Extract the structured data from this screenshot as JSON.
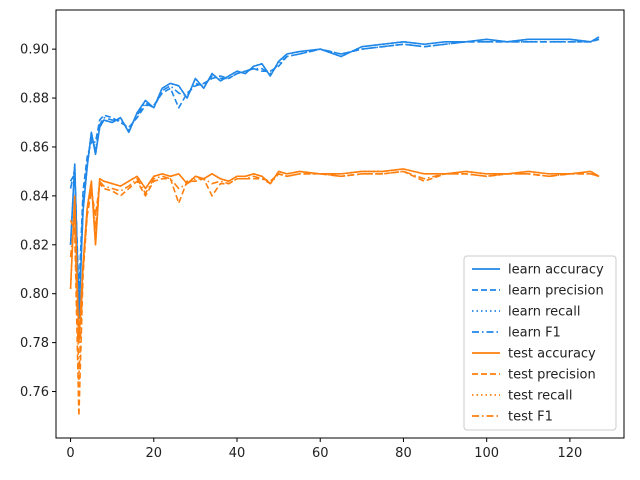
{
  "chart_data": {
    "type": "line",
    "xlim": [
      -3.5,
      133
    ],
    "ylim": [
      0.741,
      0.916
    ],
    "xticks": [
      0,
      20,
      40,
      60,
      80,
      100,
      120
    ],
    "yticks": [
      0.76,
      0.78,
      0.8,
      0.82,
      0.84,
      0.86,
      0.88,
      0.9
    ],
    "ytick_labels": [
      "0.76",
      "0.78",
      "0.80",
      "0.82",
      "0.84",
      "0.86",
      "0.88",
      "0.90"
    ],
    "legend_position": "lower-right",
    "colors": {
      "learn": "#1f87e8",
      "test": "#ff7f0e"
    },
    "x_checkpoints": [
      0,
      1,
      2,
      3,
      4,
      5,
      6,
      7,
      8,
      10,
      12,
      14,
      16,
      18,
      20,
      22,
      24,
      26,
      28,
      30,
      32,
      34,
      36,
      38,
      40,
      42,
      44,
      46,
      48,
      50,
      52,
      55,
      60,
      65,
      70,
      75,
      80,
      85,
      90,
      95,
      100,
      105,
      110,
      115,
      120,
      125,
      127
    ],
    "series": [
      {
        "name": "learn accuracy",
        "group": "learn",
        "dash": "solid",
        "values": [
          0.82,
          0.853,
          0.79,
          0.834,
          0.852,
          0.866,
          0.857,
          0.868,
          0.871,
          0.87,
          0.872,
          0.866,
          0.874,
          0.879,
          0.876,
          0.884,
          0.886,
          0.885,
          0.88,
          0.888,
          0.884,
          0.89,
          0.887,
          0.889,
          0.891,
          0.89,
          0.893,
          0.894,
          0.889,
          0.895,
          0.898,
          0.899,
          0.9,
          0.897,
          0.901,
          0.902,
          0.903,
          0.902,
          0.903,
          0.903,
          0.904,
          0.903,
          0.904,
          0.904,
          0.904,
          0.903,
          0.905
        ]
      },
      {
        "name": "learn precision",
        "group": "learn",
        "dash": "dashed",
        "values": [
          0.846,
          0.849,
          0.8,
          0.842,
          0.856,
          0.862,
          0.862,
          0.871,
          0.873,
          0.872,
          0.87,
          0.868,
          0.872,
          0.877,
          0.877,
          0.882,
          0.884,
          0.876,
          0.882,
          0.885,
          0.886,
          0.888,
          0.889,
          0.888,
          0.89,
          0.891,
          0.892,
          0.891,
          0.891,
          0.893,
          0.897,
          0.898,
          0.9,
          0.898,
          0.9,
          0.901,
          0.902,
          0.901,
          0.902,
          0.903,
          0.903,
          0.903,
          0.903,
          0.903,
          0.903,
          0.903,
          0.904
        ]
      },
      {
        "name": "learn recall",
        "group": "learn",
        "dash": "dotted",
        "values": [
          0.82,
          0.853,
          0.79,
          0.834,
          0.852,
          0.866,
          0.857,
          0.868,
          0.871,
          0.87,
          0.872,
          0.866,
          0.874,
          0.879,
          0.876,
          0.884,
          0.886,
          0.885,
          0.88,
          0.888,
          0.884,
          0.89,
          0.887,
          0.889,
          0.891,
          0.89,
          0.893,
          0.894,
          0.889,
          0.895,
          0.898,
          0.899,
          0.9,
          0.897,
          0.901,
          0.902,
          0.903,
          0.902,
          0.903,
          0.903,
          0.904,
          0.903,
          0.904,
          0.904,
          0.904,
          0.903,
          0.905
        ]
      },
      {
        "name": "learn F1",
        "group": "learn",
        "dash": "dashdot",
        "values": [
          0.843,
          0.851,
          0.795,
          0.838,
          0.853,
          0.864,
          0.859,
          0.869,
          0.872,
          0.871,
          0.871,
          0.867,
          0.873,
          0.878,
          0.876,
          0.883,
          0.885,
          0.882,
          0.881,
          0.886,
          0.885,
          0.889,
          0.888,
          0.888,
          0.89,
          0.891,
          0.892,
          0.892,
          0.89,
          0.894,
          0.897,
          0.898,
          0.9,
          0.898,
          0.9,
          0.901,
          0.902,
          0.901,
          0.902,
          0.903,
          0.903,
          0.903,
          0.903,
          0.903,
          0.903,
          0.903,
          0.904
        ]
      },
      {
        "name": "test accuracy",
        "group": "test",
        "dash": "solid",
        "values": [
          0.802,
          0.84,
          0.78,
          0.812,
          0.835,
          0.846,
          0.82,
          0.847,
          0.846,
          0.845,
          0.844,
          0.846,
          0.848,
          0.843,
          0.848,
          0.849,
          0.848,
          0.849,
          0.845,
          0.848,
          0.847,
          0.849,
          0.847,
          0.846,
          0.848,
          0.848,
          0.849,
          0.848,
          0.845,
          0.85,
          0.849,
          0.85,
          0.849,
          0.849,
          0.85,
          0.85,
          0.851,
          0.849,
          0.849,
          0.85,
          0.849,
          0.849,
          0.85,
          0.849,
          0.849,
          0.85,
          0.848
        ]
      },
      {
        "name": "test precision",
        "group": "test",
        "dash": "dashed",
        "values": [
          0.83,
          0.826,
          0.75,
          0.808,
          0.832,
          0.842,
          0.832,
          0.845,
          0.843,
          0.842,
          0.84,
          0.843,
          0.846,
          0.84,
          0.846,
          0.847,
          0.847,
          0.837,
          0.846,
          0.846,
          0.847,
          0.84,
          0.845,
          0.845,
          0.847,
          0.847,
          0.847,
          0.847,
          0.846,
          0.849,
          0.848,
          0.849,
          0.849,
          0.848,
          0.849,
          0.849,
          0.85,
          0.846,
          0.849,
          0.849,
          0.848,
          0.849,
          0.849,
          0.848,
          0.849,
          0.849,
          0.848
        ]
      },
      {
        "name": "test recall",
        "group": "test",
        "dash": "dotted",
        "values": [
          0.802,
          0.84,
          0.78,
          0.812,
          0.835,
          0.846,
          0.82,
          0.847,
          0.846,
          0.845,
          0.844,
          0.846,
          0.848,
          0.843,
          0.848,
          0.849,
          0.848,
          0.849,
          0.845,
          0.848,
          0.847,
          0.849,
          0.847,
          0.846,
          0.848,
          0.848,
          0.849,
          0.848,
          0.845,
          0.85,
          0.849,
          0.85,
          0.849,
          0.849,
          0.85,
          0.85,
          0.851,
          0.849,
          0.849,
          0.85,
          0.849,
          0.849,
          0.85,
          0.849,
          0.849,
          0.85,
          0.848
        ]
      },
      {
        "name": "test F1",
        "group": "test",
        "dash": "dashdot",
        "values": [
          0.815,
          0.832,
          0.765,
          0.81,
          0.833,
          0.844,
          0.826,
          0.846,
          0.844,
          0.843,
          0.842,
          0.844,
          0.847,
          0.841,
          0.847,
          0.848,
          0.847,
          0.843,
          0.845,
          0.847,
          0.847,
          0.845,
          0.846,
          0.845,
          0.847,
          0.847,
          0.848,
          0.847,
          0.845,
          0.849,
          0.848,
          0.849,
          0.849,
          0.848,
          0.849,
          0.849,
          0.85,
          0.847,
          0.849,
          0.849,
          0.848,
          0.849,
          0.849,
          0.848,
          0.849,
          0.849,
          0.848
        ]
      }
    ]
  }
}
